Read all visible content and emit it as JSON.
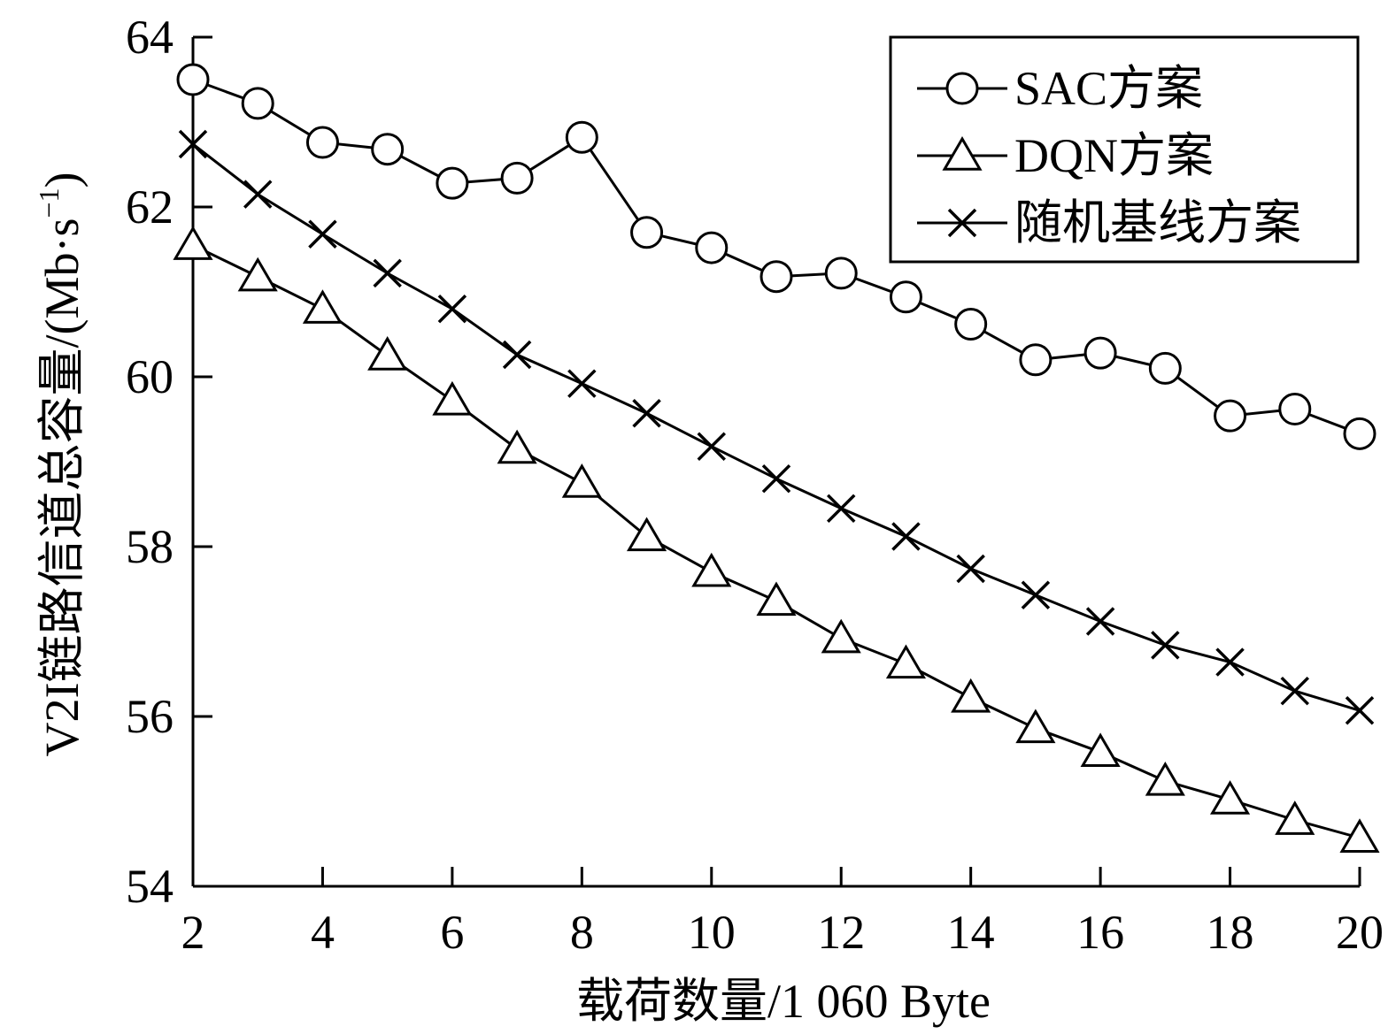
{
  "chart_data": {
    "type": "line",
    "title": "",
    "xlabel": "载荷数量/1 060 Byte",
    "ylabel": {
      "main": "V2I链路信道总容量/(Mb·s",
      "superscript": "−1",
      "close": ")"
    },
    "xlim": [
      2,
      20
    ],
    "ylim": [
      54,
      64
    ],
    "xticks": [
      "2",
      "4",
      "6",
      "8",
      "10",
      "12",
      "14",
      "16",
      "18",
      "20"
    ],
    "yticks": [
      "54",
      "56",
      "58",
      "60",
      "62",
      "64"
    ],
    "grid": false,
    "legend_position": "top-right",
    "x": [
      2,
      3,
      4,
      5,
      6,
      7,
      8,
      9,
      10,
      11,
      12,
      13,
      14,
      15,
      16,
      17,
      18,
      19,
      20
    ],
    "series": [
      {
        "name": "SAC方案",
        "marker": "circle",
        "color": "#000000",
        "values": [
          63.5,
          63.22,
          62.76,
          62.68,
          62.28,
          62.34,
          62.82,
          61.7,
          61.52,
          61.18,
          61.22,
          60.94,
          60.62,
          60.2,
          60.28,
          60.1,
          59.54,
          59.62,
          59.33
        ]
      },
      {
        "name": "DQN方案",
        "marker": "triangle",
        "color": "#000000",
        "values": [
          61.55,
          61.18,
          60.8,
          60.25,
          59.72,
          59.15,
          58.75,
          58.12,
          57.7,
          57.36,
          56.92,
          56.62,
          56.22,
          55.86,
          55.58,
          55.24,
          55.02,
          54.78,
          54.57
        ]
      },
      {
        "name": "随机基线方案",
        "marker": "x",
        "color": "#000000",
        "values": [
          62.74,
          62.15,
          61.68,
          61.22,
          60.8,
          60.26,
          59.92,
          59.57,
          59.18,
          58.8,
          58.45,
          58.12,
          57.74,
          57.43,
          57.12,
          56.84,
          56.64,
          56.3,
          56.07
        ]
      }
    ]
  }
}
